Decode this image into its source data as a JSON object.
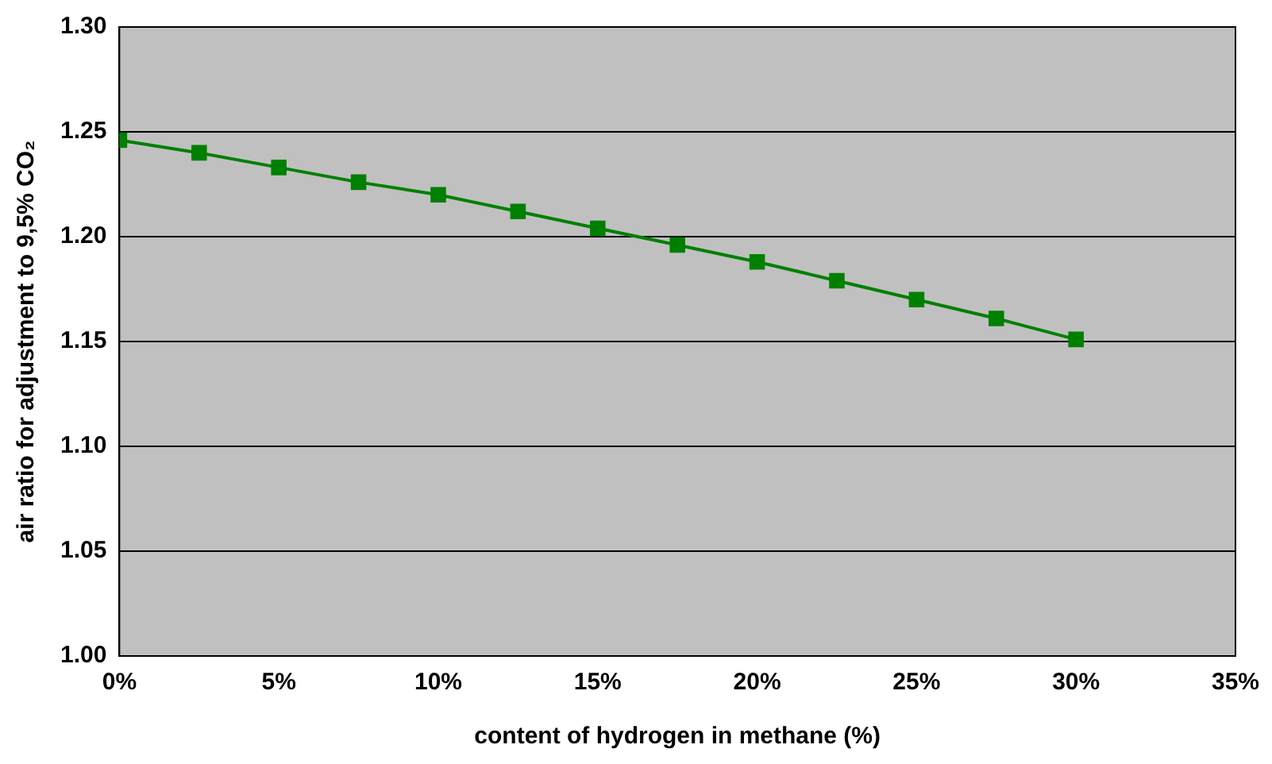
{
  "chart_data": {
    "type": "line",
    "xlabel": "content of hydrogen in methane (%)",
    "ylabel": "air ratio for adjustment to 9,5% CO₂",
    "x": [
      0,
      2.5,
      5,
      7.5,
      10,
      12.5,
      15,
      17.5,
      20,
      22.5,
      25,
      27.5,
      30
    ],
    "series": [
      {
        "color": "#008000",
        "values": [
          1.246,
          1.24,
          1.233,
          1.226,
          1.22,
          1.212,
          1.204,
          1.196,
          1.188,
          1.179,
          1.17,
          1.161,
          1.151
        ]
      }
    ],
    "xlim": [
      0,
      35
    ],
    "xticks": [
      {
        "value": 0,
        "label": "0%"
      },
      {
        "value": 5,
        "label": "5%"
      },
      {
        "value": 10,
        "label": "10%"
      },
      {
        "value": 15,
        "label": "15%"
      },
      {
        "value": 20,
        "label": "20%"
      },
      {
        "value": 25,
        "label": "25%"
      },
      {
        "value": 30,
        "label": "30%"
      },
      {
        "value": 35,
        "label": "35%"
      }
    ],
    "ylim": [
      1.0,
      1.3
    ],
    "yticks": [
      {
        "value": 1.0,
        "label": "1.00"
      },
      {
        "value": 1.05,
        "label": "1.05"
      },
      {
        "value": 1.1,
        "label": "1.10"
      },
      {
        "value": 1.15,
        "label": "1.15"
      },
      {
        "value": 1.2,
        "label": "1.20"
      },
      {
        "value": 1.25,
        "label": "1.25"
      },
      {
        "value": 1.3,
        "label": "1.30"
      }
    ],
    "grid": "y",
    "legend": false,
    "marker": "square",
    "line_style": "solid"
  }
}
